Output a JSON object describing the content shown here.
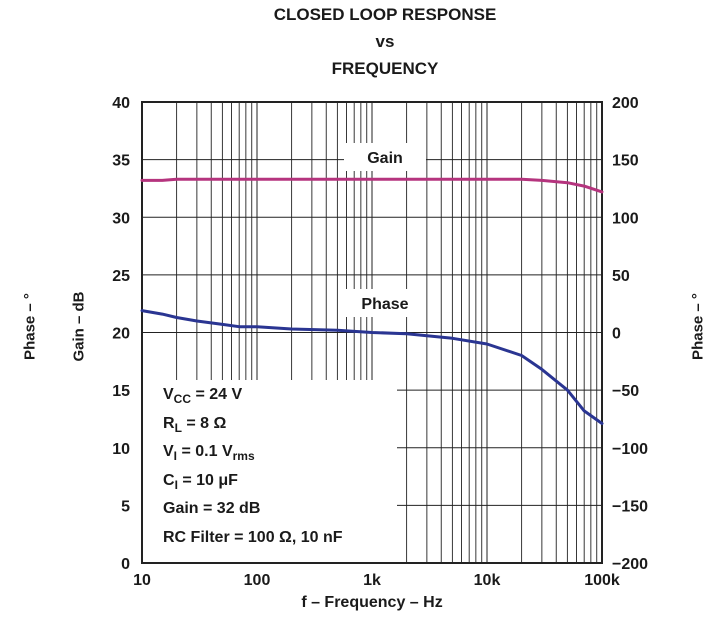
{
  "title": {
    "line1": "CLOSED LOOP RESPONSE",
    "line2": "vs",
    "line3": "FREQUENCY"
  },
  "ylabel_outer_left": "Phase – °",
  "ylabel_left": "Gain – dB",
  "ylabel_right": "Phase – °",
  "xlabel": "f – Frequency – Hz",
  "conditions": [
    {
      "main": "V",
      "sub": "CC",
      "rest": " = 24 V"
    },
    {
      "main": "R",
      "sub": "L",
      "rest": " = 8 Ω"
    },
    {
      "main": "V",
      "sub": "I",
      "rest": " = 0.1 V",
      "sub2": "rms"
    },
    {
      "main": "C",
      "sub": "I",
      "rest": " = 10 μF"
    },
    {
      "main": "Gain = 32 dB",
      "sub": "",
      "rest": ""
    },
    {
      "main": "RC Filter = 100 Ω, 10 nF",
      "sub": "",
      "rest": ""
    }
  ],
  "chart_data": {
    "type": "line",
    "x_scale": "log",
    "xlim": [
      10,
      100000
    ],
    "x_ticks": [
      10,
      100,
      1000,
      10000,
      100000
    ],
    "x_tick_labels": [
      "10",
      "100",
      "1k",
      "10k",
      "100k"
    ],
    "ylim_left": [
      0,
      40
    ],
    "y_ticks_left": [
      0,
      5,
      10,
      15,
      20,
      25,
      30,
      35,
      40
    ],
    "y_tick_labels_left": [
      "0",
      "5",
      "10",
      "15",
      "20",
      "25",
      "30",
      "35",
      "40"
    ],
    "ylim_right": [
      -200,
      200
    ],
    "y_ticks_right": [
      -200,
      -150,
      -100,
      -50,
      0,
      50,
      100,
      150,
      200
    ],
    "y_tick_labels_right": [
      "−200",
      "−150",
      "−100",
      "−50",
      "0",
      "50",
      "100",
      "150",
      "200"
    ],
    "grid": true,
    "series": [
      {
        "name": "Gain",
        "axis": "left",
        "color": "#b5347e",
        "x": [
          10,
          15,
          20,
          50,
          100,
          1000,
          10000,
          20000,
          30000,
          50000,
          70000,
          100000
        ],
        "y": [
          33.2,
          33.2,
          33.3,
          33.3,
          33.3,
          33.3,
          33.3,
          33.3,
          33.2,
          33.0,
          32.7,
          32.2
        ]
      },
      {
        "name": "Phase",
        "axis": "right",
        "color": "#2a3592",
        "x": [
          10,
          15,
          20,
          30,
          50,
          70,
          100,
          200,
          500,
          1000,
          2000,
          5000,
          10000,
          20000,
          30000,
          50000,
          70000,
          100000
        ],
        "y": [
          19,
          16,
          13,
          10,
          7,
          5,
          5,
          3,
          2,
          0,
          -1,
          -5,
          -10,
          -20,
          -32,
          -50,
          -68,
          -79
        ]
      }
    ]
  }
}
